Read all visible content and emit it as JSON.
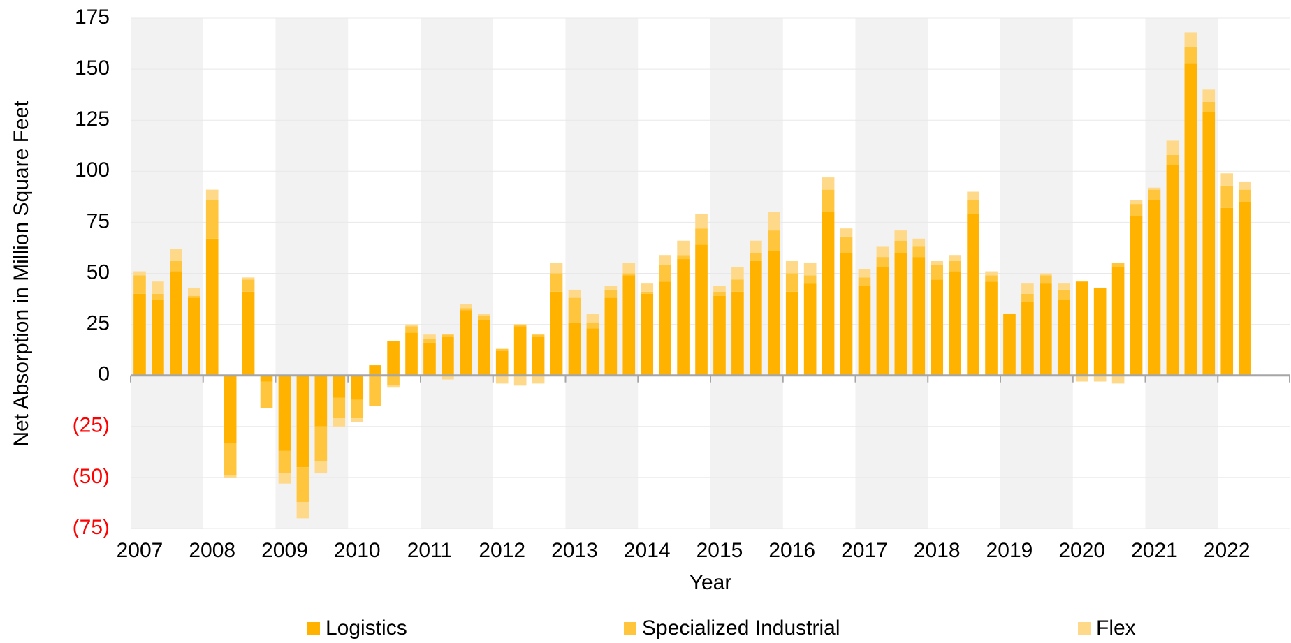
{
  "chart_data": {
    "type": "stacked_bar",
    "x_label": "Year",
    "y_label": "Net Absorption in Million Square Feet",
    "categories": [
      "2007",
      null,
      null,
      null,
      "2008",
      null,
      null,
      null,
      "2009",
      null,
      null,
      null,
      "2010",
      null,
      null,
      null,
      "2011",
      null,
      null,
      null,
      "2012",
      null,
      null,
      null,
      "2013",
      null,
      null,
      null,
      "2014",
      null,
      null,
      null,
      "2015",
      null,
      null,
      null,
      "2016",
      null,
      null,
      null,
      "2017",
      null,
      null,
      null,
      "2018",
      null,
      null,
      null,
      "2019",
      null,
      null,
      null,
      "2020",
      null,
      null,
      null,
      "2021",
      null,
      null,
      null,
      "2022",
      null
    ],
    "series": [
      {
        "name": "Logistics",
        "color": "#ffb300",
        "values": [
          40,
          37,
          51,
          38,
          67,
          -33,
          41,
          -3,
          -37,
          -45,
          -25,
          -11,
          -12,
          5,
          17,
          21,
          16,
          19,
          32,
          27,
          12,
          24,
          19,
          41,
          26,
          23,
          38,
          49,
          40,
          46,
          57,
          64,
          39,
          41,
          56,
          61,
          41,
          45,
          80,
          60,
          44,
          53,
          60,
          58,
          47,
          51,
          79,
          46,
          30,
          36,
          45,
          37,
          46,
          43,
          53,
          78,
          86,
          103,
          153,
          129,
          82,
          85
        ]
      },
      {
        "name": "Specialized Industrial",
        "color": "#ffc53d",
        "values": [
          9,
          3,
          5,
          1,
          19,
          -16,
          6,
          -13,
          -11,
          -17,
          -17,
          -10,
          -9,
          -15,
          -5,
          3,
          2,
          1,
          1,
          2,
          1,
          1,
          1,
          9,
          12,
          3,
          4,
          1,
          1,
          8,
          2,
          8,
          2,
          6,
          4,
          10,
          9,
          4,
          11,
          8,
          4,
          5,
          6,
          5,
          7,
          5,
          7,
          3,
          0,
          4,
          4,
          5,
          0,
          0,
          2,
          6,
          5,
          5,
          8,
          5,
          11,
          6
        ]
      },
      {
        "name": "Flex",
        "color": "#ffd98a",
        "values": [
          2,
          6,
          6,
          4,
          5,
          -1,
          1,
          0,
          -5,
          -8,
          -6,
          -4,
          -2,
          0,
          -1,
          1,
          2,
          -2,
          2,
          1,
          -4,
          -5,
          -4,
          5,
          4,
          4,
          2,
          5,
          4,
          5,
          7,
          7,
          3,
          6,
          6,
          9,
          6,
          6,
          6,
          4,
          4,
          5,
          5,
          4,
          2,
          3,
          4,
          2,
          0,
          5,
          1,
          3,
          -3,
          -3,
          -4,
          2,
          1,
          7,
          7,
          6,
          6,
          4
        ]
      }
    ],
    "ylim": [
      -75,
      175
    ],
    "yticks": [
      {
        "value": -75,
        "label": "(75)"
      },
      {
        "value": -50,
        "label": "(50)"
      },
      {
        "value": -25,
        "label": "(25)"
      },
      0,
      25,
      50,
      75,
      100,
      125,
      150,
      175
    ],
    "negative_tick_color": "#ff0000",
    "grid": true,
    "legend": "bottom"
  }
}
